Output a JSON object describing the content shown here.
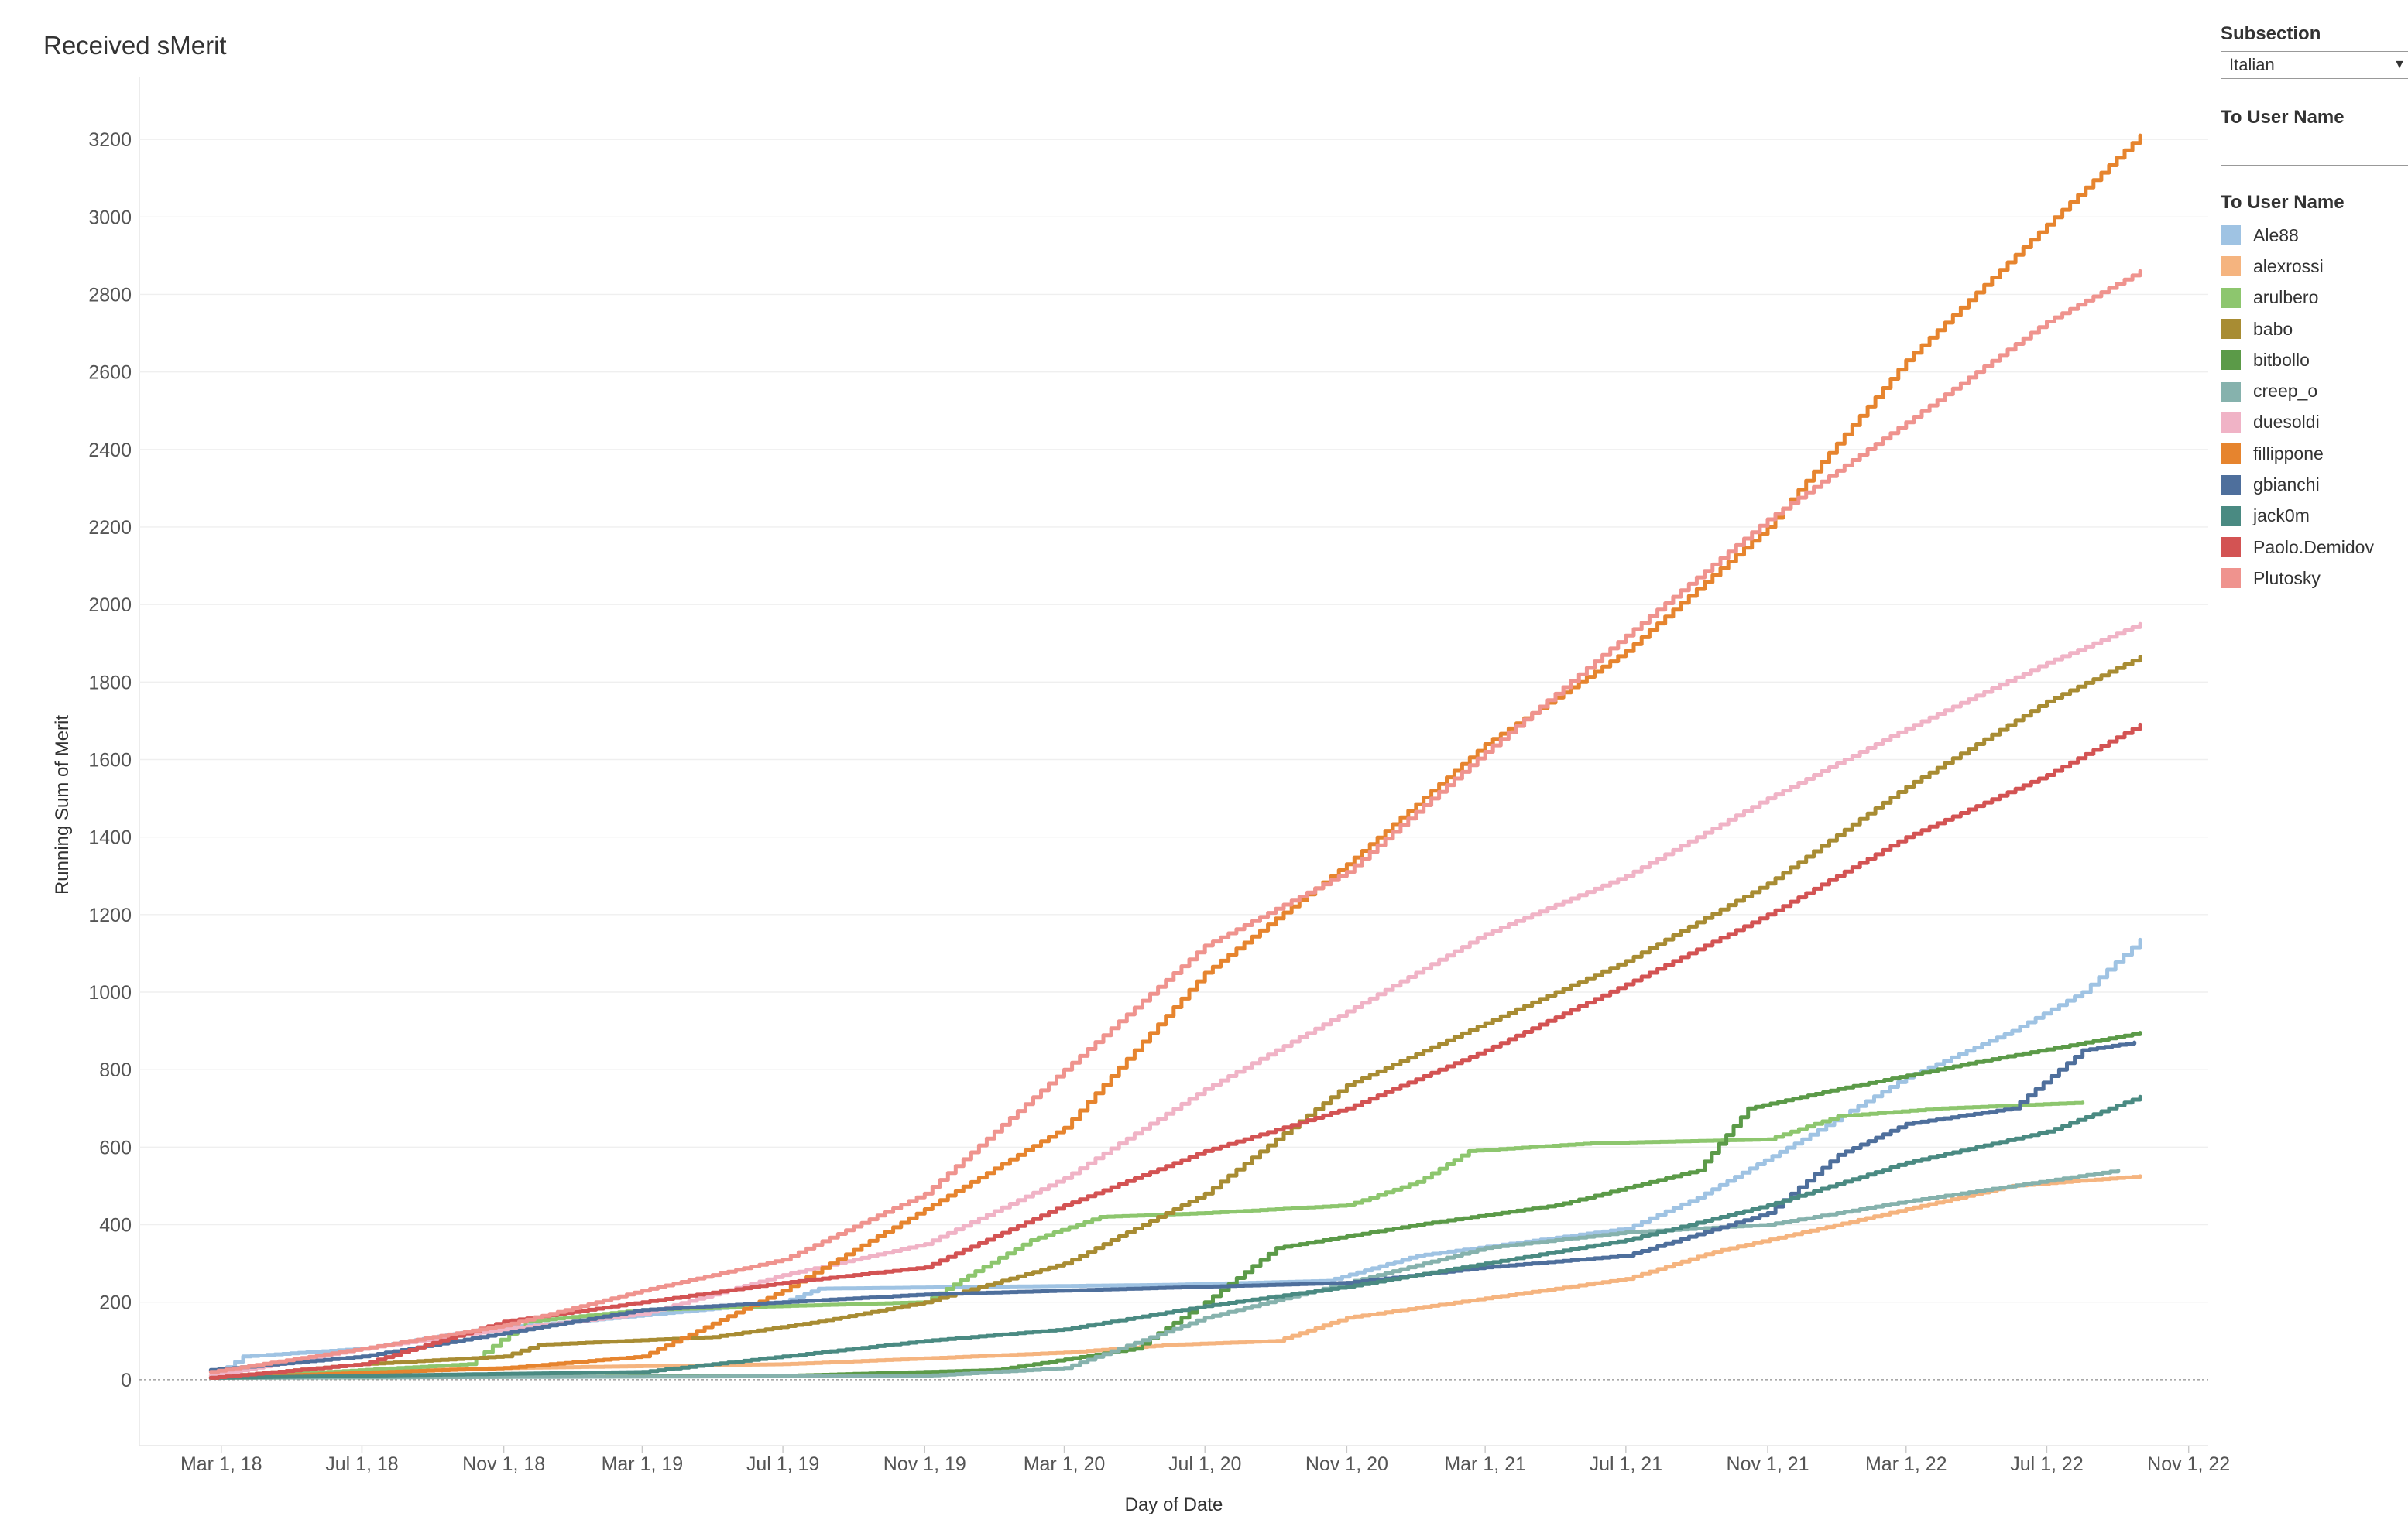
{
  "title": "Received sMerit",
  "filters": {
    "subsection_label": "Subsection",
    "subsection_value": "Italian",
    "user_filter_label": "To User Name",
    "user_filter_value": "",
    "legend_title": "To User Name"
  },
  "chart_data": {
    "type": "line",
    "xlabel": "Day of Date",
    "ylabel": "Running Sum of Merit",
    "x_ticks": [
      {
        "date": "2018-03-01",
        "label": "Mar 1, 18"
      },
      {
        "date": "2018-07-01",
        "label": "Jul 1, 18"
      },
      {
        "date": "2018-11-01",
        "label": "Nov 1, 18"
      },
      {
        "date": "2019-03-01",
        "label": "Mar 1, 19"
      },
      {
        "date": "2019-07-01",
        "label": "Jul 1, 19"
      },
      {
        "date": "2019-11-01",
        "label": "Nov 1, 19"
      },
      {
        "date": "2020-03-01",
        "label": "Mar 1, 20"
      },
      {
        "date": "2020-07-01",
        "label": "Jul 1, 20"
      },
      {
        "date": "2020-11-01",
        "label": "Nov 1, 20"
      },
      {
        "date": "2021-03-01",
        "label": "Mar 1, 21"
      },
      {
        "date": "2021-07-01",
        "label": "Jul 1, 21"
      },
      {
        "date": "2021-11-01",
        "label": "Nov 1, 21"
      },
      {
        "date": "2022-03-01",
        "label": "Mar 1, 22"
      },
      {
        "date": "2022-07-01",
        "label": "Jul 1, 22"
      },
      {
        "date": "2022-11-01",
        "label": "Nov 1, 22"
      }
    ],
    "xlim": [
      "2017-12-20",
      "2022-11-18"
    ],
    "y_ticks": [
      0,
      200,
      400,
      600,
      800,
      1000,
      1200,
      1400,
      1600,
      1800,
      2000,
      2200,
      2400,
      2600,
      2800,
      3000,
      3200
    ],
    "ylim": [
      -170,
      3360
    ],
    "grid": true,
    "legend_position": "right",
    "series": [
      {
        "name": "Ale88",
        "color": "#9fc3e3",
        "points": [
          [
            "2018-02-20",
            5
          ],
          [
            "2018-03-20",
            60
          ],
          [
            "2018-07-01",
            80
          ],
          [
            "2018-10-15",
            130
          ],
          [
            "2019-01-01",
            150
          ],
          [
            "2019-07-01",
            200
          ],
          [
            "2019-08-01",
            235
          ],
          [
            "2020-01-01",
            240
          ],
          [
            "2020-06-01",
            245
          ],
          [
            "2020-10-15",
            255
          ],
          [
            "2021-01-01",
            320
          ],
          [
            "2021-07-01",
            390
          ],
          [
            "2021-09-01",
            470
          ],
          [
            "2021-12-01",
            620
          ],
          [
            "2022-03-01",
            780
          ],
          [
            "2022-06-01",
            900
          ],
          [
            "2022-08-01",
            1000
          ],
          [
            "2022-09-20",
            1135
          ]
        ]
      },
      {
        "name": "alexrossi",
        "color": "#f5b47f",
        "points": [
          [
            "2018-02-20",
            5
          ],
          [
            "2018-06-01",
            20
          ],
          [
            "2018-11-01",
            30
          ],
          [
            "2019-07-01",
            40
          ],
          [
            "2019-11-01",
            55
          ],
          [
            "2020-03-01",
            70
          ],
          [
            "2020-06-01",
            90
          ],
          [
            "2020-09-01",
            100
          ],
          [
            "2020-11-01",
            160
          ],
          [
            "2021-03-01",
            210
          ],
          [
            "2021-07-01",
            260
          ],
          [
            "2021-09-15",
            330
          ],
          [
            "2021-12-01",
            380
          ],
          [
            "2022-03-01",
            440
          ],
          [
            "2022-06-01",
            500
          ],
          [
            "2022-09-20",
            525
          ]
        ]
      },
      {
        "name": "arulbero",
        "color": "#8dc66e",
        "points": [
          [
            "2018-02-20",
            5
          ],
          [
            "2018-06-01",
            20
          ],
          [
            "2018-10-01",
            40
          ],
          [
            "2018-11-20",
            150
          ],
          [
            "2019-03-01",
            180
          ],
          [
            "2019-07-01",
            190
          ],
          [
            "2019-11-01",
            200
          ],
          [
            "2019-12-15",
            280
          ],
          [
            "2020-02-01",
            360
          ],
          [
            "2020-04-01",
            420
          ],
          [
            "2020-07-01",
            430
          ],
          [
            "2020-11-01",
            450
          ],
          [
            "2021-01-01",
            510
          ],
          [
            "2021-02-15",
            590
          ],
          [
            "2021-06-01",
            610
          ],
          [
            "2021-11-01",
            620
          ],
          [
            "2022-01-01",
            680
          ],
          [
            "2022-04-01",
            700
          ],
          [
            "2022-08-01",
            715
          ]
        ]
      },
      {
        "name": "babo",
        "color": "#a88c33",
        "points": [
          [
            "2018-02-20",
            5
          ],
          [
            "2018-07-01",
            40
          ],
          [
            "2018-11-01",
            60
          ],
          [
            "2018-12-01",
            90
          ],
          [
            "2019-05-01",
            110
          ],
          [
            "2019-08-01",
            150
          ],
          [
            "2019-11-01",
            200
          ],
          [
            "2020-03-01",
            300
          ],
          [
            "2020-07-01",
            480
          ],
          [
            "2020-11-01",
            760
          ],
          [
            "2021-03-01",
            920
          ],
          [
            "2021-07-01",
            1080
          ],
          [
            "2021-11-01",
            1280
          ],
          [
            "2022-03-01",
            1530
          ],
          [
            "2022-07-01",
            1750
          ],
          [
            "2022-09-20",
            1865
          ]
        ]
      },
      {
        "name": "bitbollo",
        "color": "#5b9a48",
        "points": [
          [
            "2018-02-20",
            5
          ],
          [
            "2019-07-01",
            10
          ],
          [
            "2020-01-01",
            25
          ],
          [
            "2020-05-01",
            80
          ],
          [
            "2020-07-01",
            200
          ],
          [
            "2020-09-01",
            340
          ],
          [
            "2021-01-01",
            400
          ],
          [
            "2021-05-01",
            450
          ],
          [
            "2021-09-01",
            540
          ],
          [
            "2021-10-15",
            700
          ],
          [
            "2022-01-01",
            750
          ],
          [
            "2022-05-01",
            820
          ],
          [
            "2022-09-20",
            895
          ]
        ]
      },
      {
        "name": "creep_o",
        "color": "#86b2ad",
        "points": [
          [
            "2018-02-20",
            5
          ],
          [
            "2019-11-01",
            10
          ],
          [
            "2020-03-01",
            30
          ],
          [
            "2020-07-01",
            160
          ],
          [
            "2020-11-01",
            250
          ],
          [
            "2021-03-01",
            340
          ],
          [
            "2021-07-01",
            380
          ],
          [
            "2021-11-01",
            400
          ],
          [
            "2022-03-01",
            460
          ],
          [
            "2022-09-01",
            540
          ]
        ]
      },
      {
        "name": "duesoldi",
        "color": "#f0b3c6",
        "points": [
          [
            "2018-02-20",
            10
          ],
          [
            "2018-07-01",
            80
          ],
          [
            "2018-11-01",
            130
          ],
          [
            "2019-03-01",
            170
          ],
          [
            "2019-07-01",
            270
          ],
          [
            "2019-11-01",
            350
          ],
          [
            "2020-03-01",
            520
          ],
          [
            "2020-07-01",
            750
          ],
          [
            "2020-11-01",
            950
          ],
          [
            "2021-03-01",
            1150
          ],
          [
            "2021-07-01",
            1300
          ],
          [
            "2021-11-01",
            1500
          ],
          [
            "2022-03-01",
            1680
          ],
          [
            "2022-07-01",
            1850
          ],
          [
            "2022-09-20",
            1950
          ]
        ]
      },
      {
        "name": "fillippone",
        "color": "#e6842e",
        "points": [
          [
            "2018-02-20",
            5
          ],
          [
            "2018-11-01",
            30
          ],
          [
            "2019-03-01",
            60
          ],
          [
            "2019-07-01",
            230
          ],
          [
            "2019-11-01",
            440
          ],
          [
            "2020-03-01",
            650
          ],
          [
            "2020-07-01",
            1050
          ],
          [
            "2020-11-01",
            1330
          ],
          [
            "2021-03-01",
            1640
          ],
          [
            "2021-07-01",
            1880
          ],
          [
            "2021-11-01",
            2200
          ],
          [
            "2022-03-01",
            2630
          ],
          [
            "2022-07-01",
            2980
          ],
          [
            "2022-09-20",
            3210
          ]
        ]
      },
      {
        "name": "gbianchi",
        "color": "#4e6f9c",
        "points": [
          [
            "2018-02-20",
            25
          ],
          [
            "2018-07-01",
            60
          ],
          [
            "2018-11-01",
            120
          ],
          [
            "2019-03-01",
            180
          ],
          [
            "2019-07-01",
            200
          ],
          [
            "2019-11-01",
            220
          ],
          [
            "2020-03-01",
            230
          ],
          [
            "2020-07-01",
            240
          ],
          [
            "2020-11-01",
            250
          ],
          [
            "2021-03-01",
            290
          ],
          [
            "2021-07-01",
            320
          ],
          [
            "2021-11-01",
            430
          ],
          [
            "2022-01-01",
            580
          ],
          [
            "2022-03-01",
            660
          ],
          [
            "2022-06-01",
            700
          ],
          [
            "2022-08-01",
            850
          ],
          [
            "2022-09-15",
            870
          ]
        ]
      },
      {
        "name": "jack0m",
        "color": "#4a8a82",
        "points": [
          [
            "2018-02-20",
            5
          ],
          [
            "2019-03-01",
            20
          ],
          [
            "2019-07-01",
            60
          ],
          [
            "2019-11-01",
            100
          ],
          [
            "2020-03-01",
            130
          ],
          [
            "2020-07-01",
            190
          ],
          [
            "2020-11-01",
            240
          ],
          [
            "2021-03-01",
            300
          ],
          [
            "2021-07-01",
            360
          ],
          [
            "2021-11-01",
            450
          ],
          [
            "2022-03-01",
            560
          ],
          [
            "2022-07-01",
            640
          ],
          [
            "2022-09-20",
            730
          ]
        ]
      },
      {
        "name": "Paolo.Demidov",
        "color": "#d35353",
        "points": [
          [
            "2018-02-20",
            5
          ],
          [
            "2018-07-01",
            40
          ],
          [
            "2018-11-01",
            150
          ],
          [
            "2019-03-01",
            200
          ],
          [
            "2019-07-01",
            250
          ],
          [
            "2019-11-01",
            290
          ],
          [
            "2020-03-01",
            450
          ],
          [
            "2020-07-01",
            590
          ],
          [
            "2020-11-01",
            700
          ],
          [
            "2021-03-01",
            850
          ],
          [
            "2021-07-01",
            1020
          ],
          [
            "2021-11-01",
            1200
          ],
          [
            "2022-03-01",
            1400
          ],
          [
            "2022-07-01",
            1560
          ],
          [
            "2022-09-20",
            1690
          ]
        ]
      },
      {
        "name": "Plutosky",
        "color": "#ef938e",
        "points": [
          [
            "2018-02-20",
            20
          ],
          [
            "2018-07-01",
            80
          ],
          [
            "2018-11-01",
            140
          ],
          [
            "2019-03-01",
            230
          ],
          [
            "2019-07-01",
            310
          ],
          [
            "2019-11-01",
            480
          ],
          [
            "2020-03-01",
            800
          ],
          [
            "2020-07-01",
            1120
          ],
          [
            "2020-11-01",
            1310
          ],
          [
            "2021-03-01",
            1620
          ],
          [
            "2021-07-01",
            1920
          ],
          [
            "2021-11-01",
            2220
          ],
          [
            "2022-03-01",
            2470
          ],
          [
            "2022-07-01",
            2730
          ],
          [
            "2022-09-20",
            2860
          ]
        ]
      }
    ]
  }
}
